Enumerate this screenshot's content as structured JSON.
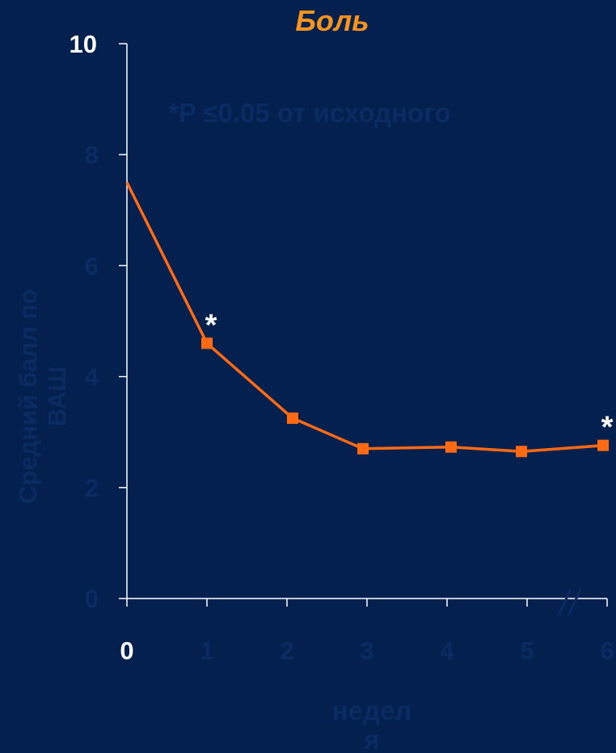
{
  "chart_data": {
    "type": "line",
    "title": "Боль",
    "annotation": "*P ≤0.05 от исходного",
    "ylabel_lines": [
      "Средний балл по",
      "ВАШ"
    ],
    "xlabel_lines": [
      "недел",
      "я"
    ],
    "x_ticks": [
      "0",
      "1",
      "2",
      "3",
      "4",
      "5",
      "6"
    ],
    "y_ticks": [
      "0",
      "2",
      "4",
      "6",
      "8",
      "10"
    ],
    "ylim": [
      0,
      10
    ],
    "xlim": [
      0,
      6
    ],
    "axis_break": "//",
    "series": [
      {
        "x": [
          0,
          1,
          2.07,
          2.95,
          4.05,
          4.93,
          5.95
        ],
        "y": [
          7.5,
          4.6,
          3.25,
          2.7,
          2.73,
          2.65,
          2.76
        ]
      }
    ],
    "significance_marks": [
      {
        "x": 1,
        "label": "*"
      },
      {
        "x": 5.95,
        "label": "*"
      }
    ]
  },
  "colors": {
    "background": "#03204f",
    "line": "#ff6a13",
    "title": "#f7941d",
    "faint_text": "#0a2c63",
    "axis": "#ffffff"
  }
}
